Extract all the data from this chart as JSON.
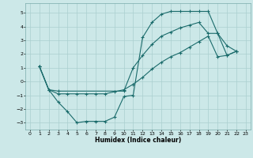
{
  "title": "",
  "xlabel": "Humidex (Indice chaleur)",
  "bg_color": "#cce8e8",
  "line_color": "#1a6b6b",
  "grid_color": "#aacfcf",
  "xlim": [
    -0.5,
    23.5
  ],
  "ylim": [
    -3.5,
    5.7
  ],
  "xticks": [
    0,
    1,
    2,
    3,
    4,
    5,
    6,
    7,
    8,
    9,
    10,
    11,
    12,
    13,
    14,
    15,
    16,
    17,
    18,
    19,
    20,
    21,
    22,
    23
  ],
  "yticks": [
    -3,
    -2,
    -1,
    0,
    1,
    2,
    3,
    4,
    5
  ],
  "line1_x": [
    1,
    2,
    3,
    4,
    5,
    6,
    7,
    8,
    9,
    10,
    11,
    12,
    13,
    14,
    15,
    16,
    17,
    18,
    19,
    20,
    21,
    22
  ],
  "line1_y": [
    1.1,
    -0.6,
    -1.5,
    -2.2,
    -3.0,
    -2.9,
    -2.9,
    -2.9,
    -2.6,
    -1.1,
    -1.0,
    3.2,
    4.3,
    4.9,
    5.1,
    5.1,
    5.1,
    5.1,
    5.1,
    3.5,
    2.6,
    2.2
  ],
  "line2_x": [
    1,
    2,
    3,
    10,
    11,
    12,
    13,
    14,
    15,
    16,
    17,
    18,
    19,
    20,
    21,
    22
  ],
  "line2_y": [
    1.1,
    -0.6,
    -0.7,
    -0.7,
    1.0,
    1.9,
    2.7,
    3.3,
    3.6,
    3.9,
    4.1,
    4.3,
    3.5,
    3.5,
    1.9,
    2.2
  ],
  "line3_x": [
    1,
    2,
    3,
    4,
    5,
    6,
    7,
    8,
    9,
    10,
    11,
    12,
    13,
    14,
    15,
    16,
    17,
    18,
    19,
    20,
    21,
    22
  ],
  "line3_y": [
    1.1,
    -0.6,
    -0.9,
    -0.9,
    -0.9,
    -0.9,
    -0.9,
    -0.9,
    -0.75,
    -0.6,
    -0.2,
    0.3,
    0.9,
    1.4,
    1.8,
    2.1,
    2.5,
    2.9,
    3.3,
    1.8,
    1.9,
    2.2
  ]
}
